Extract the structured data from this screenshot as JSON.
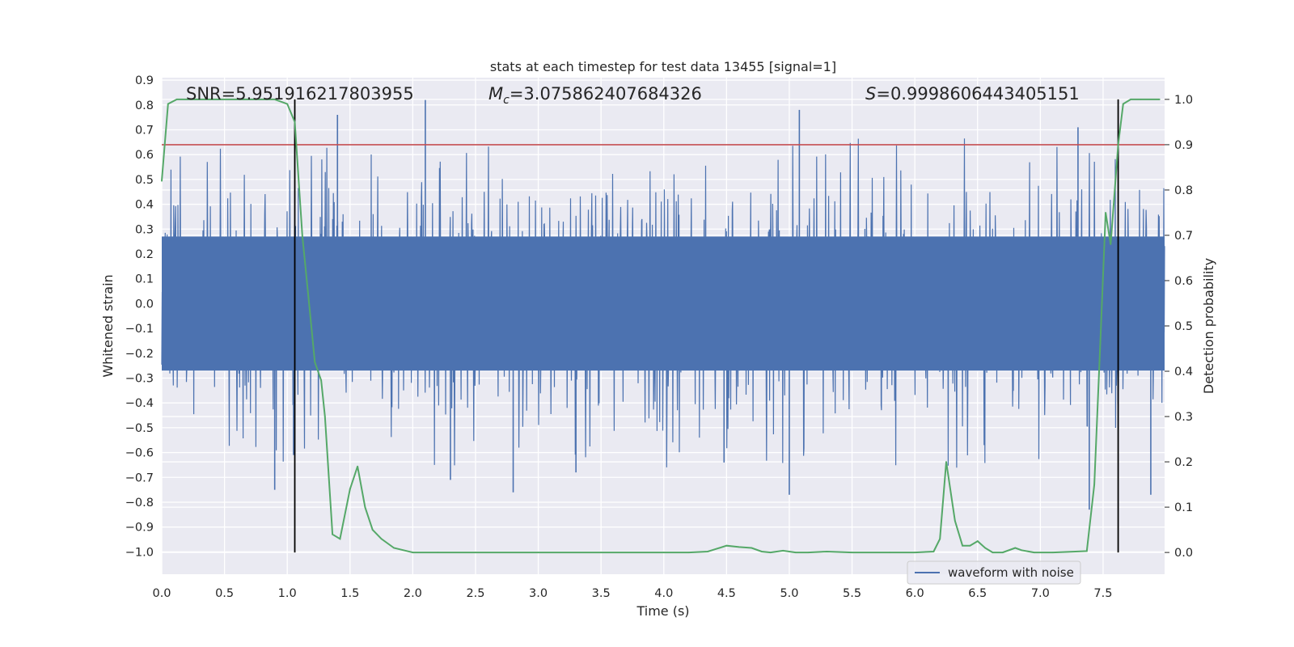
{
  "chart_data": {
    "type": "line",
    "title": "stats at each timestep for test data 13455 [signal=1]",
    "xlabel": "Time (s)",
    "ylabel": "Whitened strain",
    "y2label": "Detection probability",
    "xlim": [
      0.0,
      7.99
    ],
    "ylim": [
      -1.09,
      0.91
    ],
    "y2lim": [
      -0.048,
      1.048
    ],
    "xticks": [
      0.0,
      0.5,
      1.0,
      1.5,
      2.0,
      2.5,
      3.0,
      3.5,
      4.0,
      4.5,
      5.0,
      5.5,
      6.0,
      6.5,
      7.0,
      7.5
    ],
    "xtick_labels": [
      "0.0",
      "0.5",
      "1.0",
      "1.5",
      "2.0",
      "2.5",
      "3.0",
      "3.5",
      "4.0",
      "4.5",
      "5.0",
      "5.5",
      "6.0",
      "6.5",
      "7.0",
      "7.5"
    ],
    "yticks": [
      0.9,
      0.8,
      0.7,
      0.6,
      0.5,
      0.4,
      0.3,
      0.2,
      0.1,
      0.0,
      -0.1,
      -0.2,
      -0.3,
      -0.4,
      -0.5,
      -0.6,
      -0.7,
      -0.8,
      -0.9,
      -1.0
    ],
    "ytick_labels": [
      "0.9",
      "0.8",
      "0.7",
      "0.6",
      "0.5",
      "0.4",
      "0.3",
      "0.2",
      "0.1",
      "0.0",
      "−0.1",
      "−0.2",
      "−0.3",
      "−0.4",
      "−0.5",
      "−0.6",
      "−0.7",
      "−0.8",
      "−0.9",
      "−1.0"
    ],
    "y2ticks": [
      1.0,
      0.9,
      0.8,
      0.7,
      0.6,
      0.5,
      0.4,
      0.3,
      0.2,
      0.1,
      0.0
    ],
    "y2tick_labels": [
      "1.0",
      "0.9",
      "0.8",
      "0.7",
      "0.6",
      "0.5",
      "0.4",
      "0.3",
      "0.2",
      "0.1",
      "0.0"
    ],
    "annotations": {
      "snr": "SNR=5.951916217803955",
      "mc_symbol": "M",
      "mc_sub": "c",
      "mc_value": "=3.075862407684326",
      "s_symbol": "S",
      "s_value": "=0.9998606443405151"
    },
    "threshold": 0.9,
    "vlines": [
      1.06,
      7.62
    ],
    "vline_range": [
      0.0,
      1.0
    ],
    "legend": {
      "label": "waveform with noise",
      "position": "lower right"
    },
    "series": [
      {
        "name": "waveform with noise",
        "kind": "noise",
        "color": "#4c72b0",
        "x_range": [
          0.0,
          7.99
        ],
        "dense_band": [
          -0.27,
          0.27
        ],
        "typical_spikes": [
          -0.45,
          0.45
        ],
        "notable_peaks": [
          {
            "x": 2.1,
            "y": 0.82
          },
          {
            "x": 1.4,
            "y": 0.76
          },
          {
            "x": 5.08,
            "y": 0.78
          },
          {
            "x": 7.3,
            "y": 0.71
          },
          {
            "x": 7.39,
            "y": -0.83
          },
          {
            "x": 0.9,
            "y": -0.75
          },
          {
            "x": 5.0,
            "y": -0.77
          },
          {
            "x": 7.88,
            "y": -0.77
          },
          {
            "x": 2.8,
            "y": -0.76
          },
          {
            "x": 2.3,
            "y": -0.71
          },
          {
            "x": 3.3,
            "y": -0.68
          },
          {
            "x": 1.05,
            "y": -0.61
          },
          {
            "x": 4.48,
            "y": -0.64
          }
        ]
      },
      {
        "name": "Detection probability",
        "kind": "line",
        "color": "#55a868",
        "axis": "right",
        "x": [
          0.0,
          0.05,
          0.12,
          0.3,
          0.5,
          0.7,
          0.9,
          1.0,
          1.06,
          1.12,
          1.17,
          1.22,
          1.27,
          1.3,
          1.36,
          1.42,
          1.5,
          1.56,
          1.62,
          1.68,
          1.75,
          1.85,
          2.0,
          2.2,
          2.5,
          3.0,
          3.5,
          4.0,
          4.2,
          4.35,
          4.42,
          4.5,
          4.6,
          4.7,
          4.78,
          4.85,
          4.95,
          5.05,
          5.15,
          5.3,
          5.5,
          5.8,
          6.0,
          6.15,
          6.2,
          6.25,
          6.32,
          6.38,
          6.44,
          6.5,
          6.56,
          6.62,
          6.7,
          6.8,
          6.85,
          6.95,
          7.1,
          7.28,
          7.37,
          7.43,
          7.48,
          7.52,
          7.56,
          7.62,
          7.66,
          7.72,
          7.8,
          7.95
        ],
        "values": [
          0.82,
          0.99,
          1.0,
          1.0,
          1.0,
          1.0,
          1.0,
          0.99,
          0.95,
          0.7,
          0.56,
          0.42,
          0.38,
          0.3,
          0.04,
          0.03,
          0.14,
          0.19,
          0.1,
          0.05,
          0.03,
          0.01,
          0.0,
          0.0,
          0.0,
          0.0,
          0.0,
          0.0,
          0.0,
          0.002,
          0.008,
          0.015,
          0.012,
          0.01,
          0.002,
          0.0,
          0.004,
          0.0,
          0.0,
          0.002,
          0.0,
          0.0,
          0.0,
          0.002,
          0.03,
          0.2,
          0.07,
          0.015,
          0.015,
          0.025,
          0.01,
          0.0,
          0.0,
          0.01,
          0.005,
          0.0,
          0.0,
          0.002,
          0.003,
          0.15,
          0.48,
          0.75,
          0.68,
          0.9,
          0.99,
          1.0,
          1.0,
          1.0
        ]
      }
    ]
  },
  "colors": {
    "plot_background": "#eaeaf2",
    "grid": "#ffffff",
    "noise": "#4c72b0",
    "probability": "#55a868",
    "threshold": "#c44e52",
    "vline": "#000000"
  }
}
